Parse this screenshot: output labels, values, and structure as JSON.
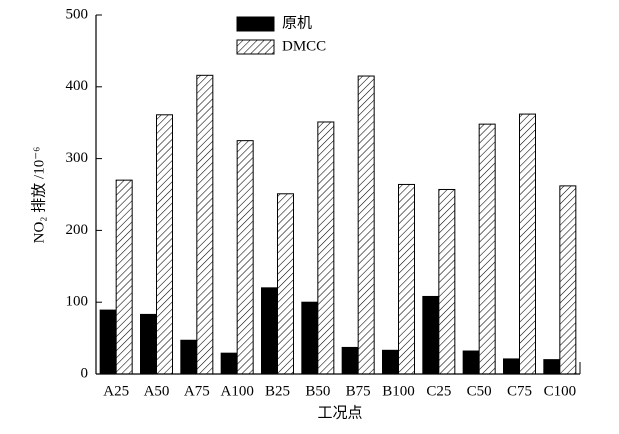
{
  "chart_data": {
    "type": "bar",
    "xlabel": "工况点",
    "ylabel": "NO₂ 排放 /10⁻⁶",
    "categories": [
      "A25",
      "A50",
      "A75",
      "A100",
      "B25",
      "B50",
      "B75",
      "B100",
      "C25",
      "C50",
      "C75",
      "C100"
    ],
    "series": [
      {
        "name": "原机",
        "color": "#000000",
        "values": [
          89,
          83,
          47,
          29,
          120,
          100,
          37,
          33,
          108,
          32,
          21,
          20
        ]
      },
      {
        "name": "DMCC",
        "color": "#ffffff",
        "pattern": "hatch",
        "values": [
          270,
          361,
          416,
          325,
          251,
          351,
          415,
          264,
          257,
          348,
          362,
          262
        ]
      }
    ],
    "ylim": [
      0,
      500
    ],
    "yticks": [
      0,
      100,
      200,
      300,
      400,
      500
    ],
    "legend": "top"
  }
}
